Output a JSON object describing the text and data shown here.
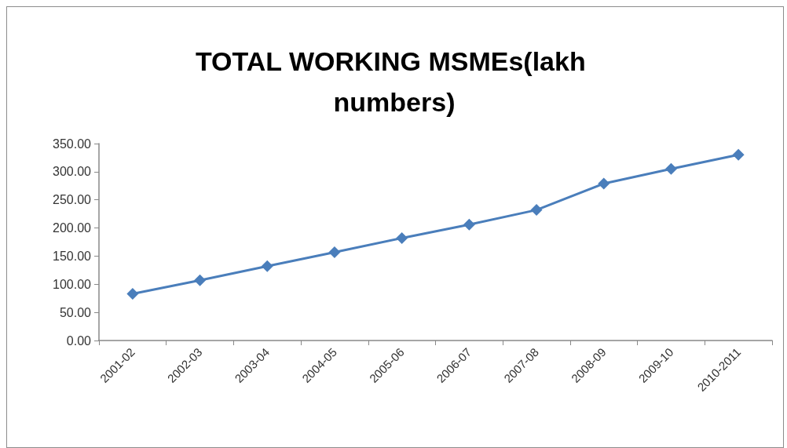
{
  "chart_data": {
    "type": "line",
    "title": "TOTAL WORKING MSMEs(lakh numbers)",
    "categories": [
      "2001-02",
      "2002-03",
      "2003-04",
      "2004-05",
      "2005-06",
      "2006-07",
      "2007-08",
      "2008-09",
      "2009-10",
      "2010-2011"
    ],
    "series": [
      {
        "color": "#4a7ebb",
        "values": [
          83,
          107,
          132,
          157,
          182,
          206,
          232,
          279,
          305,
          330
        ]
      }
    ],
    "ylim": [
      0,
      350
    ],
    "yticks": [
      {
        "value": 0,
        "label": "0.00"
      },
      {
        "value": 50,
        "label": "50.00"
      },
      {
        "value": 100,
        "label": "100.00"
      },
      {
        "value": 150,
        "label": "150.00"
      },
      {
        "value": 200,
        "label": "200.00"
      },
      {
        "value": 250,
        "label": "250.00"
      },
      {
        "value": 300,
        "label": "300.00"
      },
      {
        "value": 350,
        "label": "350.00"
      }
    ],
    "grid": false,
    "marker": "diamond",
    "line_style": "solid"
  }
}
